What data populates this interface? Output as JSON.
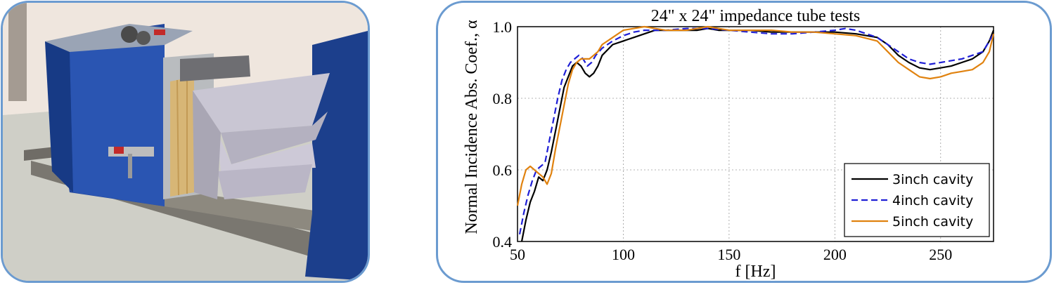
{
  "photo": {
    "description_icon": "impedance-tube-sample-photo-icon"
  },
  "chart_data": {
    "type": "line",
    "title": "24\" x 24\" impedance tube tests",
    "xlabel": "f [Hz]",
    "ylabel": "Normal Incidence Abs. Coef., α",
    "xlim": [
      50,
      275
    ],
    "ylim": [
      0.4,
      1.0
    ],
    "xticks": [
      50,
      100,
      150,
      200,
      250
    ],
    "yticks": [
      0.4,
      0.6,
      0.8,
      1.0
    ],
    "ytick_labels": [
      "0.4",
      "0.6",
      "0.8",
      "1.0"
    ],
    "grid": true,
    "legend_position": "bottom-right",
    "series": [
      {
        "name": "3inch cavity",
        "color": "#000000",
        "dash": "solid",
        "x": [
          52,
          54,
          56,
          58,
          60,
          62,
          64,
          66,
          68,
          70,
          72,
          74,
          76,
          78,
          80,
          82,
          84,
          86,
          88,
          90,
          95,
          100,
          105,
          110,
          115,
          120,
          125,
          130,
          135,
          140,
          145,
          150,
          160,
          170,
          180,
          190,
          200,
          210,
          220,
          225,
          230,
          235,
          240,
          245,
          250,
          255,
          260,
          265,
          270,
          273,
          275
        ],
        "y": [
          0.4,
          0.46,
          0.51,
          0.54,
          0.58,
          0.57,
          0.6,
          0.65,
          0.71,
          0.77,
          0.83,
          0.86,
          0.89,
          0.9,
          0.89,
          0.87,
          0.86,
          0.87,
          0.89,
          0.92,
          0.95,
          0.96,
          0.97,
          0.98,
          0.99,
          0.99,
          0.99,
          0.99,
          0.99,
          0.995,
          0.99,
          0.99,
          0.99,
          0.985,
          0.985,
          0.985,
          0.985,
          0.98,
          0.97,
          0.95,
          0.92,
          0.9,
          0.885,
          0.88,
          0.885,
          0.89,
          0.9,
          0.91,
          0.93,
          0.96,
          0.99
        ]
      },
      {
        "name": "4inch cavity",
        "color": "#1f1fd6",
        "dash": "dashed",
        "x": [
          51,
          53,
          55,
          57,
          59,
          61,
          63,
          65,
          67,
          69,
          71,
          73,
          75,
          77,
          79,
          81,
          83,
          85,
          87,
          90,
          95,
          100,
          105,
          110,
          115,
          120,
          130,
          140,
          150,
          160,
          170,
          180,
          190,
          200,
          205,
          210,
          220,
          225,
          230,
          235,
          240,
          245,
          250,
          255,
          260,
          265,
          270,
          275
        ],
        "y": [
          0.42,
          0.48,
          0.53,
          0.57,
          0.6,
          0.61,
          0.62,
          0.68,
          0.74,
          0.8,
          0.85,
          0.88,
          0.9,
          0.91,
          0.92,
          0.91,
          0.89,
          0.9,
          0.92,
          0.94,
          0.96,
          0.975,
          0.985,
          0.99,
          0.99,
          0.99,
          0.995,
          0.995,
          0.99,
          0.985,
          0.98,
          0.98,
          0.985,
          0.99,
          0.995,
          0.99,
          0.97,
          0.95,
          0.93,
          0.91,
          0.9,
          0.895,
          0.9,
          0.905,
          0.91,
          0.92,
          0.93,
          0.98
        ]
      },
      {
        "name": "5inch cavity",
        "color": "#e0820f",
        "dash": "solid",
        "x": [
          50,
          52,
          54,
          56,
          58,
          60,
          62,
          64,
          66,
          68,
          70,
          72,
          74,
          76,
          78,
          80,
          82,
          84,
          86,
          88,
          90,
          95,
          100,
          105,
          110,
          115,
          120,
          125,
          130,
          135,
          140,
          145,
          150,
          160,
          170,
          180,
          190,
          200,
          210,
          220,
          225,
          230,
          235,
          240,
          245,
          250,
          255,
          260,
          265,
          270,
          273,
          275
        ],
        "y": [
          0.5,
          0.56,
          0.6,
          0.61,
          0.6,
          0.59,
          0.58,
          0.56,
          0.59,
          0.66,
          0.72,
          0.78,
          0.84,
          0.88,
          0.9,
          0.91,
          0.91,
          0.91,
          0.92,
          0.93,
          0.95,
          0.97,
          0.99,
          0.995,
          1.0,
          0.995,
          0.99,
          0.99,
          0.99,
          0.995,
          1.0,
          0.995,
          0.99,
          0.99,
          0.99,
          0.985,
          0.985,
          0.98,
          0.975,
          0.96,
          0.93,
          0.9,
          0.88,
          0.86,
          0.855,
          0.86,
          0.87,
          0.875,
          0.88,
          0.9,
          0.93,
          0.98
        ]
      }
    ]
  }
}
